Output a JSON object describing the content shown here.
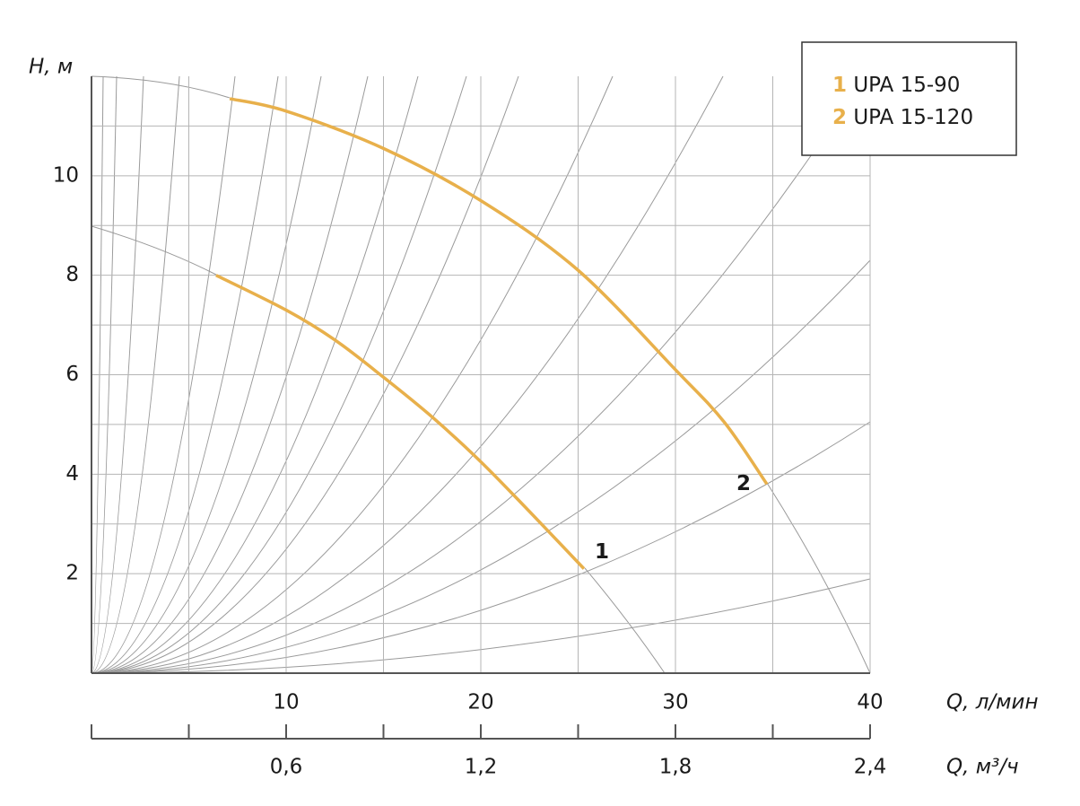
{
  "chart_data": {
    "type": "line",
    "xlim": [
      0,
      40
    ],
    "xticks": [
      10,
      20,
      30,
      40
    ],
    "xminor_ticks": [
      5,
      15,
      25,
      35
    ],
    "xlabel": "Q, л/мин",
    "x2lim": [
      0,
      2.4
    ],
    "x2ticks": [
      {
        "value": 0.6,
        "label": "0,6"
      },
      {
        "value": 1.2,
        "label": "1,2"
      },
      {
        "value": 1.8,
        "label": "1,8"
      },
      {
        "value": 2.4,
        "label": "2,4"
      }
    ],
    "x2minor_ticks": [
      0,
      0.3,
      0.9,
      1.5,
      2.1
    ],
    "x2label": "Q, м³/ч",
    "ylim": [
      0,
      12
    ],
    "yticks": [
      2,
      4,
      6,
      8,
      10
    ],
    "yminor_ticks": [
      1,
      3,
      5,
      7,
      9,
      11
    ],
    "ylabel": "H, м",
    "grid": true,
    "legend": "upper right",
    "series": [
      {
        "label": "1",
        "name": "UPA 15-90",
        "color": "#e8b04b",
        "x": [
          6.4,
          10,
          12.5,
          15,
          17.5,
          20,
          22.5,
          25.3
        ],
        "values": [
          8.0,
          7.3,
          6.7,
          5.95,
          5.15,
          4.25,
          3.25,
          2.1
        ]
      },
      {
        "label": "2",
        "name": "UPA 15-120",
        "color": "#e8b04b",
        "x": [
          7.1,
          10,
          15,
          20,
          25,
          30,
          32.5,
          34.7
        ],
        "values": [
          11.55,
          11.3,
          10.55,
          9.5,
          8.1,
          6.1,
          5.05,
          3.8
        ]
      }
    ]
  }
}
